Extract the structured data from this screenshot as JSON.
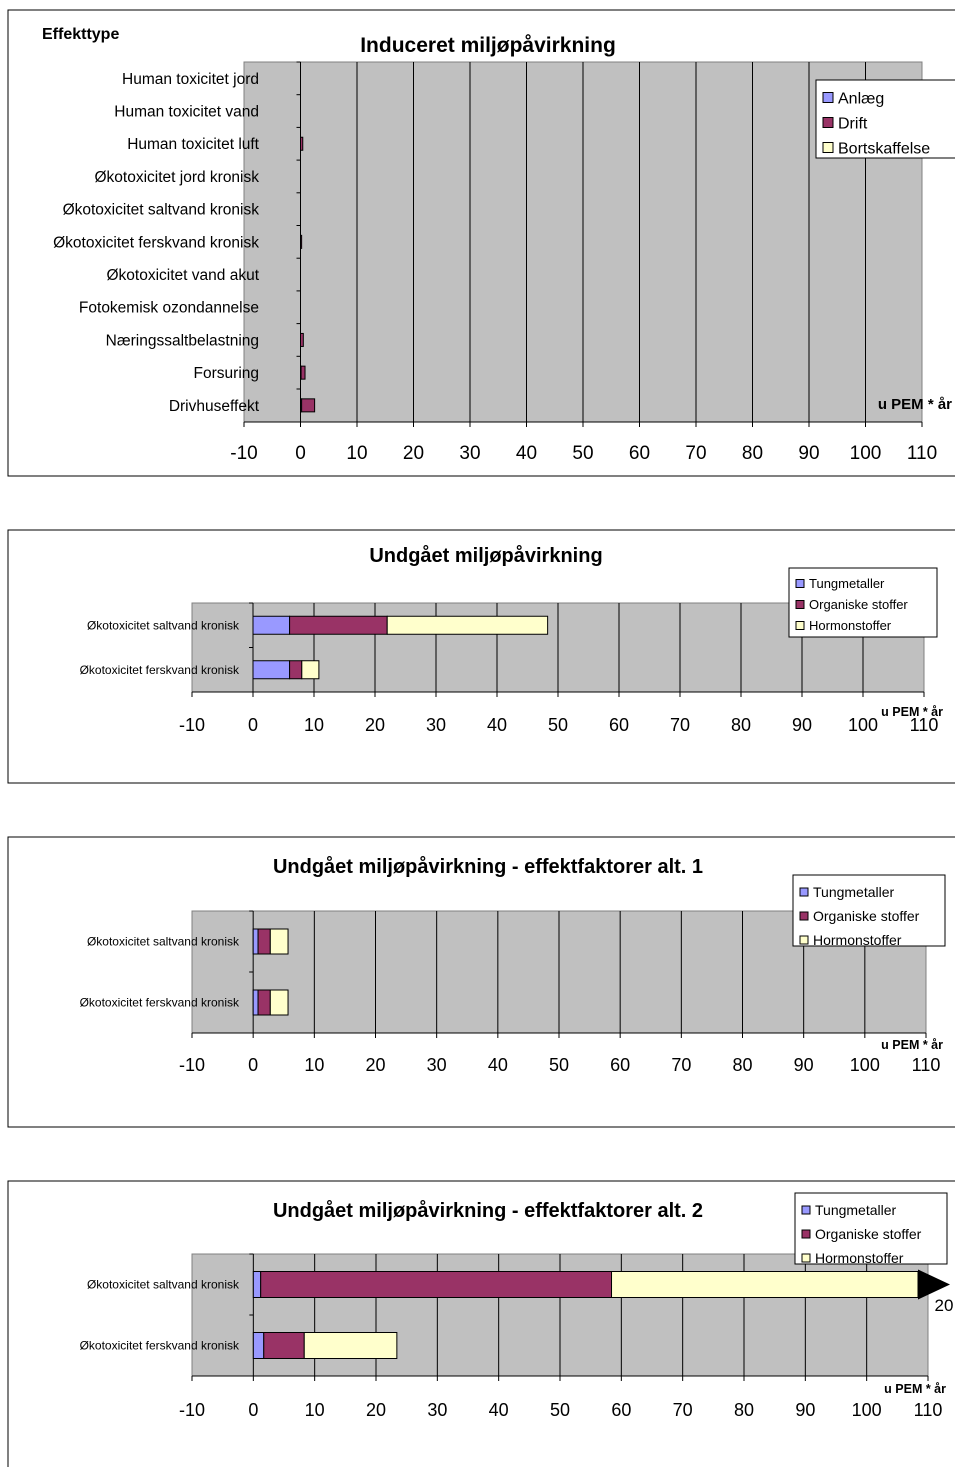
{
  "chart_data": [
    {
      "type": "bar",
      "stacked": true,
      "orientation": "horizontal",
      "title": "Induceret miljøpåvirkning",
      "category_axis_title": "Effekttype",
      "unit_label": "u PEM * år",
      "categories": [
        "Human toxicitet jord",
        "Human toxicitet vand",
        "Human toxicitet luft",
        "Økotoxicitet jord kronisk",
        "Økotoxicitet saltvand kronisk",
        "Økotoxicitet ferskvand kronisk",
        "Økotoxicitet vand akut",
        "Fotokemisk ozondannelse",
        "Næringssaltbelastning",
        "Forsuring",
        "Drivhuseffekt"
      ],
      "series": [
        {
          "name": "Anlæg",
          "color": "#9999ff",
          "values": [
            0,
            0,
            0,
            0,
            0,
            0,
            0,
            0,
            0,
            0.1,
            0.2
          ]
        },
        {
          "name": "Drift",
          "color": "#993366",
          "values": [
            0,
            0,
            0.4,
            0,
            0,
            0.2,
            0,
            0,
            0.5,
            0.7,
            2.3
          ]
        },
        {
          "name": "Bortskaffelse",
          "color": "#ffffcc",
          "values": [
            0,
            0,
            0,
            0,
            0,
            0,
            0,
            0,
            0,
            0,
            0
          ]
        }
      ],
      "xlim": [
        -10,
        110
      ],
      "ticks": [
        -10,
        0,
        10,
        20,
        30,
        40,
        50,
        60,
        70,
        80,
        90,
        100,
        110
      ],
      "plot_bg": "#c0c0c0",
      "grid": true,
      "legend": "top-right"
    },
    {
      "type": "bar",
      "stacked": true,
      "orientation": "horizontal",
      "title": "Undgået miljøpåvirkning",
      "unit_label": "u PEM * år",
      "categories": [
        "Økotoxicitet saltvand kronisk",
        "Økotoxicitet ferskvand kronisk"
      ],
      "series": [
        {
          "name": "Tungmetaller",
          "color": "#9999ff",
          "values": [
            6,
            6
          ]
        },
        {
          "name": "Organiske stoffer",
          "color": "#993366",
          "values": [
            16,
            2
          ]
        },
        {
          "name": "Hormonstoffer",
          "color": "#ffffcc",
          "values": [
            26.3,
            2.8
          ]
        }
      ],
      "xlim": [
        -10,
        110
      ],
      "ticks": [
        -10,
        0,
        10,
        20,
        30,
        40,
        50,
        60,
        70,
        80,
        90,
        100,
        110
      ],
      "plot_bg": "#c0c0c0",
      "grid": true,
      "legend": "top-right"
    },
    {
      "type": "bar",
      "stacked": true,
      "orientation": "horizontal",
      "title": "Undgået miljøpåvirkning - effektfaktorer alt. 1",
      "unit_label": "u PEM * år",
      "categories": [
        "Økotoxicitet saltvand kronisk",
        "Økotoxicitet ferskvand kronisk"
      ],
      "series": [
        {
          "name": "Tungmetaller",
          "color": "#9999ff",
          "values": [
            0.8,
            0.8
          ]
        },
        {
          "name": "Organiske stoffer",
          "color": "#993366",
          "values": [
            2,
            2
          ]
        },
        {
          "name": "Hormonstoffer",
          "color": "#ffffcc",
          "values": [
            2.9,
            2.9
          ]
        }
      ],
      "xlim": [
        -10,
        110
      ],
      "ticks": [
        -10,
        0,
        10,
        20,
        30,
        40,
        50,
        60,
        70,
        80,
        90,
        100,
        110
      ],
      "plot_bg": "#c0c0c0",
      "grid": true,
      "legend": "top-right"
    },
    {
      "type": "bar",
      "stacked": true,
      "orientation": "horizontal",
      "title": "Undgået miljøpåvirkning - effektfaktorer alt. 2",
      "unit_label": "u PEM * år",
      "categories": [
        "Økotoxicitet saltvand kronisk",
        "Økotoxicitet ferskvand kronisk"
      ],
      "series": [
        {
          "name": "Tungmetaller",
          "color": "#9999ff",
          "values": [
            1.2,
            1.7
          ]
        },
        {
          "name": "Organiske stoffer",
          "color": "#993366",
          "values": [
            57.2,
            6.6
          ]
        },
        {
          "name": "Hormonstoffer",
          "color": "#ffffcc",
          "values": [
            51.6,
            15.1
          ]
        }
      ],
      "overflow": {
        "category": "Økotoxicitet saltvand kronisk",
        "label": "20"
      },
      "xlim": [
        -10,
        110
      ],
      "ticks": [
        -10,
        0,
        10,
        20,
        30,
        40,
        50,
        60,
        70,
        80,
        90,
        100,
        110
      ],
      "plot_bg": "#c0c0c0",
      "grid": true,
      "legend": "top-right"
    }
  ]
}
